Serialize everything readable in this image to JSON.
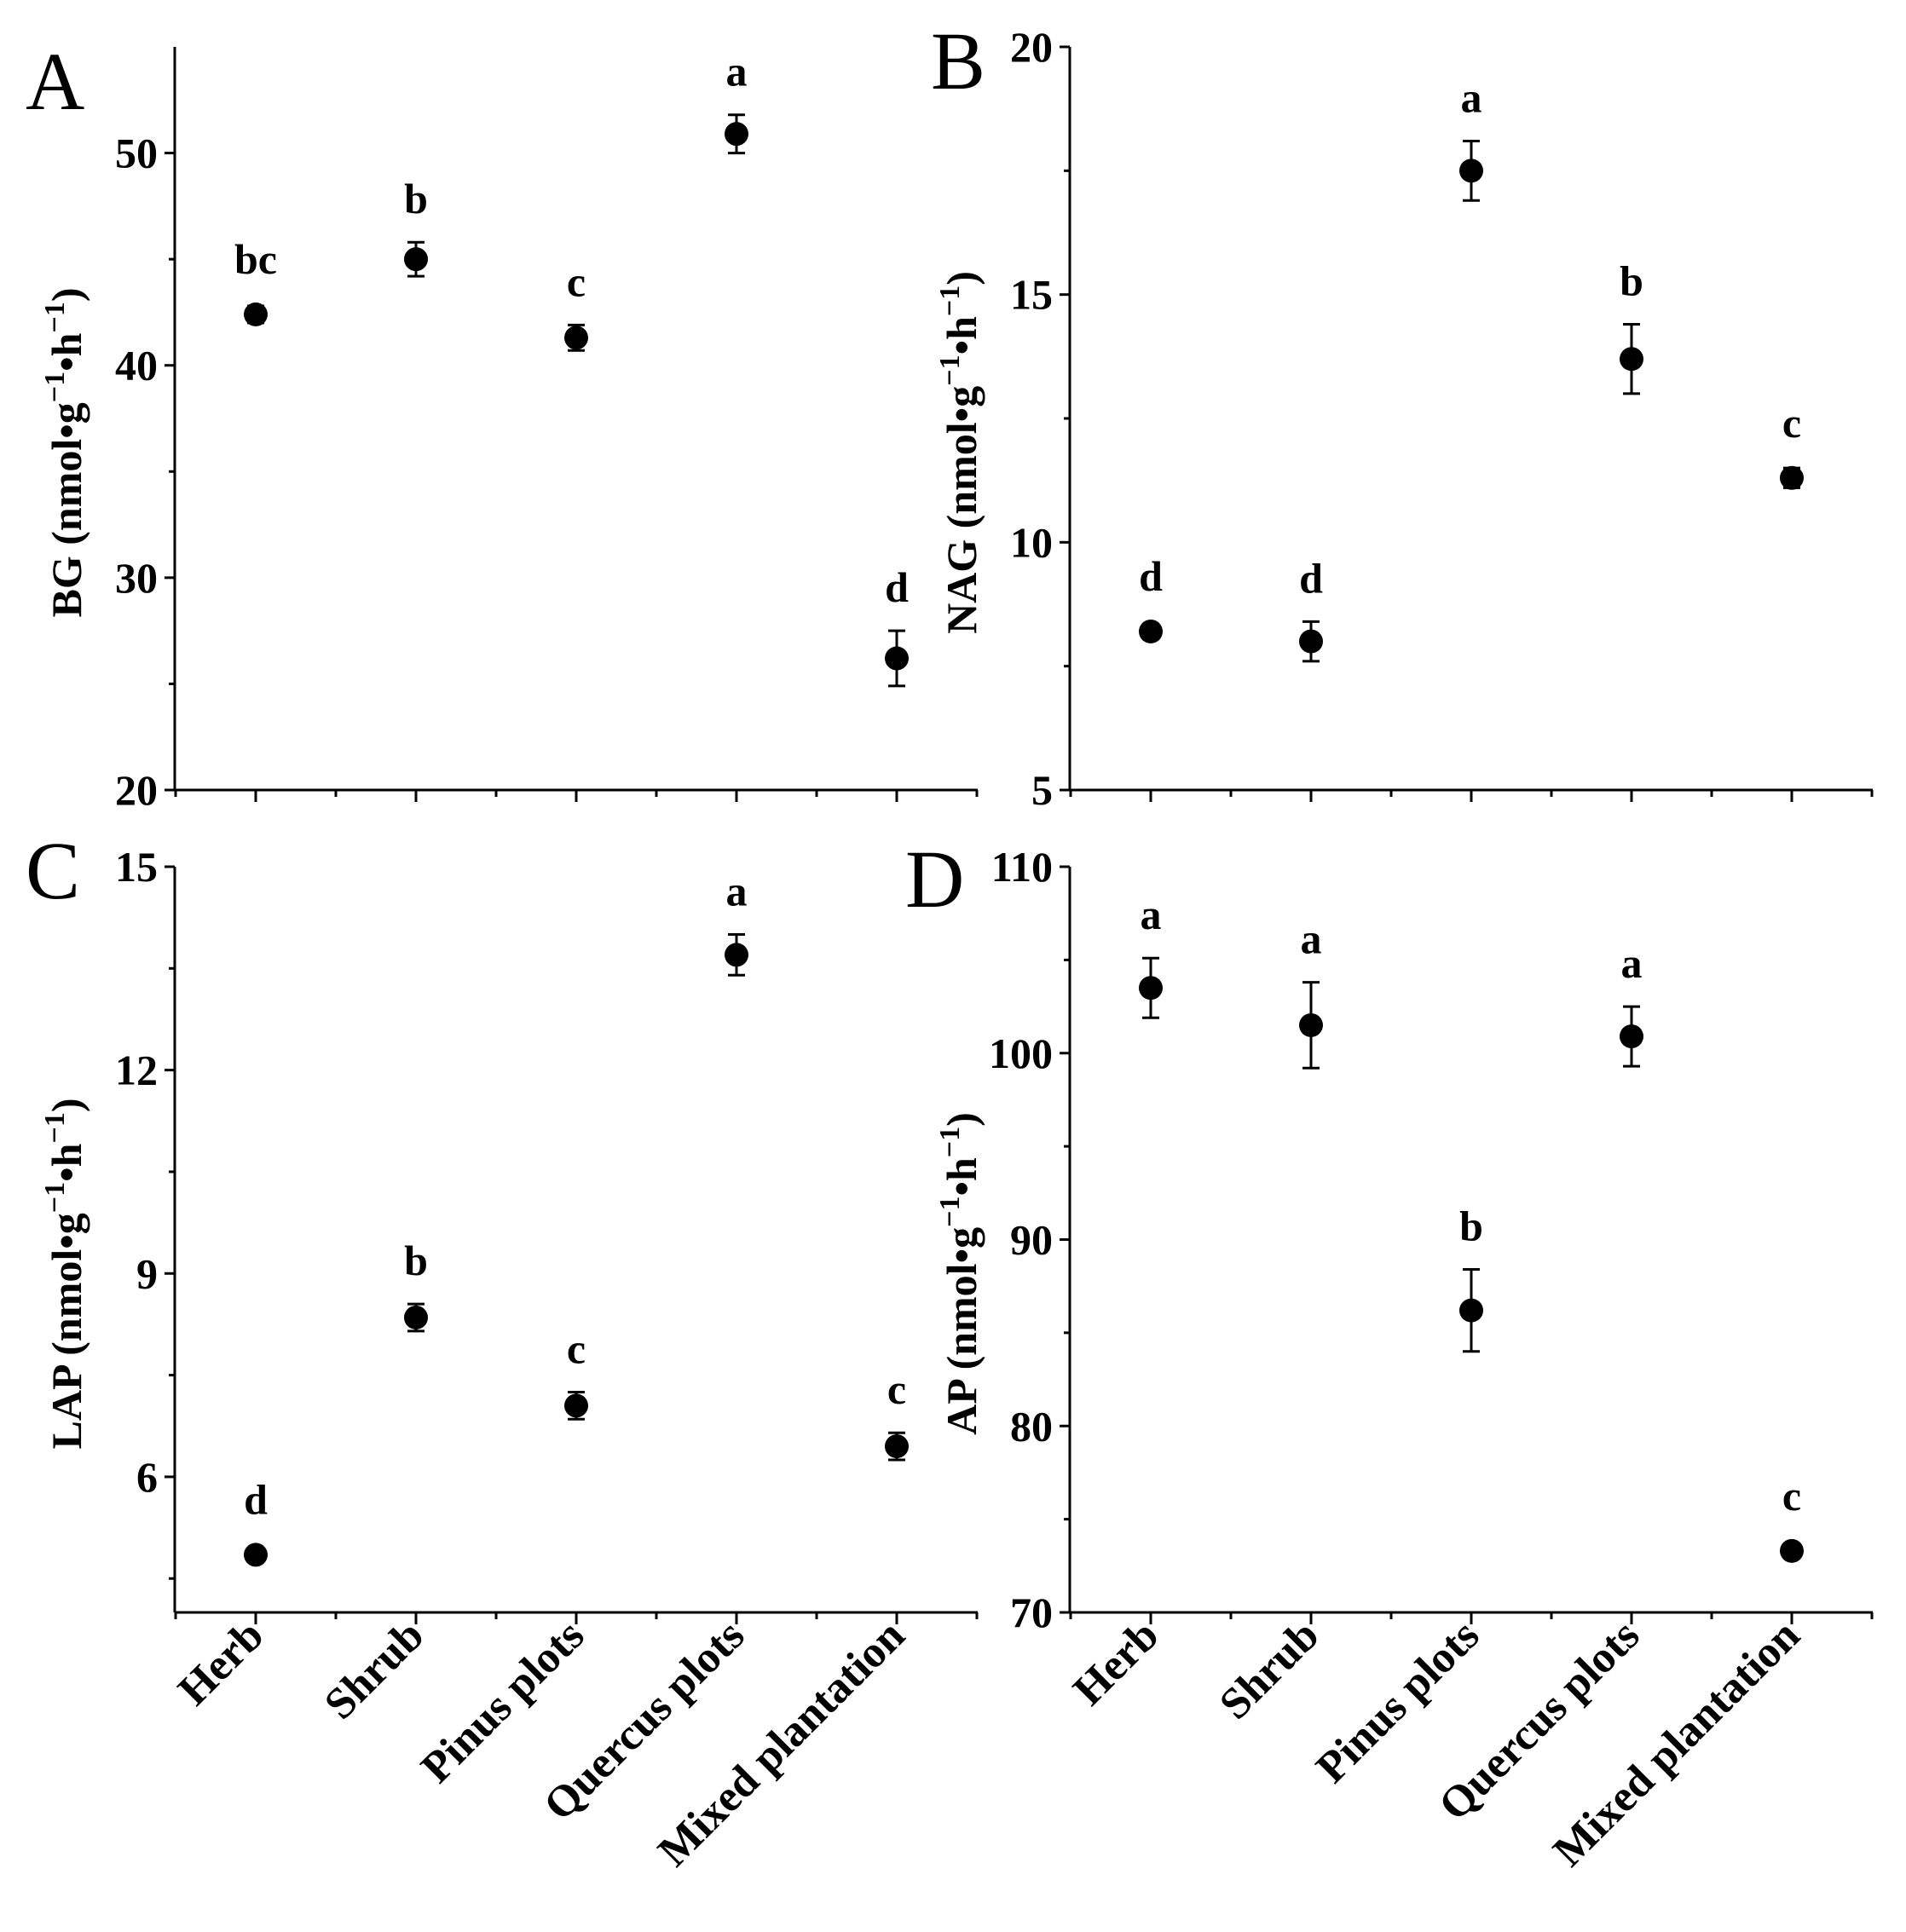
{
  "categories": [
    "Herb",
    "Shrub",
    "Pinus plots",
    "Quercus plots",
    "Mixed plantation"
  ],
  "chart_data": [
    {
      "type": "scatter",
      "panel": "A",
      "ylabel_main": "BG (nmol•g",
      "ylabel_exp1": "−1",
      "ylabel_mid": "•h",
      "ylabel_exp2": "−1",
      "ylabel_close": ")",
      "ylim": [
        20,
        55
      ],
      "yticks": [
        20,
        30,
        40,
        50
      ],
      "ytick_labels": [
        "20",
        "30",
        "40",
        "50"
      ],
      "values": [
        42.4,
        45.0,
        41.3,
        50.9,
        26.2
      ],
      "errors": [
        0.4,
        0.8,
        0.6,
        0.9,
        1.3
      ],
      "letters": [
        "bc",
        "b",
        "c",
        "a",
        "d"
      ]
    },
    {
      "type": "scatter",
      "panel": "B",
      "ylabel_main": "NAG (nmol•g",
      "ylabel_exp1": "−1",
      "ylabel_mid": "•h",
      "ylabel_exp2": "−1",
      "ylabel_close": ")",
      "ylim": [
        5,
        20
      ],
      "yticks": [
        5,
        10,
        15,
        20
      ],
      "ytick_labels": [
        "5",
        "10",
        "15",
        "20"
      ],
      "values": [
        8.2,
        8.0,
        17.5,
        13.7,
        11.3
      ],
      "errors": [
        0.15,
        0.4,
        0.6,
        0.7,
        0.2
      ],
      "letters": [
        "d",
        "d",
        "a",
        "b",
        "c"
      ]
    },
    {
      "type": "scatter",
      "panel": "C",
      "ylabel_main": "LAP (nmol•g",
      "ylabel_exp1": "−1",
      "ylabel_mid": "•h",
      "ylabel_exp2": "−1",
      "ylabel_close": ")",
      "ylim": [
        4,
        15
      ],
      "yticks": [
        6,
        9,
        12,
        15
      ],
      "ytick_labels": [
        "6",
        "9",
        "12",
        "15"
      ],
      "values": [
        4.85,
        8.35,
        7.05,
        13.7,
        6.45
      ],
      "errors": [
        0.1,
        0.2,
        0.2,
        0.3,
        0.2
      ],
      "letters": [
        "d",
        "b",
        "c",
        "a",
        "c"
      ]
    },
    {
      "type": "scatter",
      "panel": "D",
      "ylabel_main": "AP (nmol•g",
      "ylabel_exp1": "−1",
      "ylabel_mid": "•h",
      "ylabel_exp2": "−1",
      "ylabel_close": ")",
      "ylim": [
        70,
        110
      ],
      "yticks": [
        70,
        80,
        90,
        100,
        110
      ],
      "ytick_labels": [
        "70",
        "80",
        "90",
        "100",
        "110"
      ],
      "values": [
        103.5,
        101.5,
        86.2,
        100.9,
        73.3
      ],
      "errors": [
        1.6,
        2.3,
        2.2,
        1.6,
        0.3
      ],
      "letters": [
        "a",
        "a",
        "b",
        "a",
        "c"
      ]
    }
  ]
}
